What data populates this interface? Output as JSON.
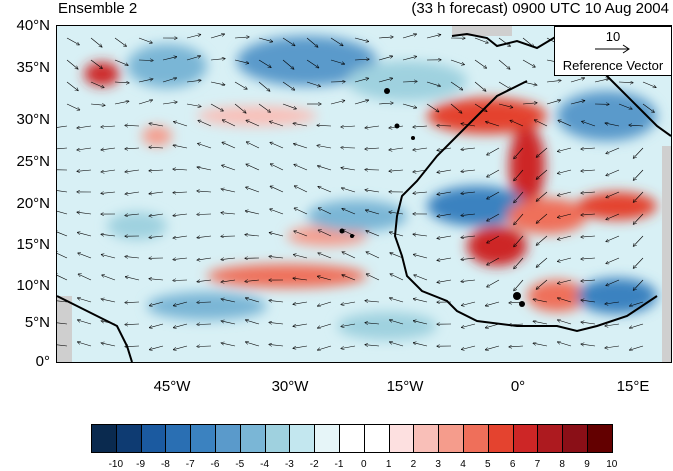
{
  "title_left": "Ensemble 2",
  "title_right": "(33 h forecast) 0900 UTC 10 Aug 2004",
  "map": {
    "lat_labels": [
      "40°N",
      "35°N",
      "30°N",
      "25°N",
      "20°N",
      "15°N",
      "10°N",
      "5°N",
      "0°"
    ],
    "lon_labels": [
      "45°W",
      "30°W",
      "15°W",
      "0°",
      "15°E"
    ],
    "lat_range": [
      0,
      40
    ],
    "lon_range": [
      -59,
      18
    ],
    "background_color": "#d8f0f5",
    "land_color": "#cfcfcf",
    "coastline_color": "#000000",
    "vector_color": "#000000"
  },
  "reference_vector": {
    "magnitude": "10",
    "label": "Reference Vector"
  },
  "colorbar": {
    "labels": [
      "-10",
      "-9",
      "-8",
      "-7",
      "-6",
      "-5",
      "-4",
      "-3",
      "-2",
      "-1",
      "0",
      "1",
      "2",
      "3",
      "4",
      "5",
      "6",
      "7",
      "8",
      "9",
      "10"
    ],
    "colors": [
      "#0a2a4f",
      "#0e3b72",
      "#1b5aa0",
      "#2a6fb3",
      "#3b82c0",
      "#5a9acb",
      "#7ab6d6",
      "#9fd1df",
      "#c3e7ef",
      "#e6f5f8",
      "#ffffff",
      "#ffffff",
      "#fde0e0",
      "#f9bfb8",
      "#f59c8c",
      "#ef6f5a",
      "#e4432f",
      "#cd2626",
      "#ad1a1f",
      "#8a0f17",
      "#630000"
    ]
  }
}
